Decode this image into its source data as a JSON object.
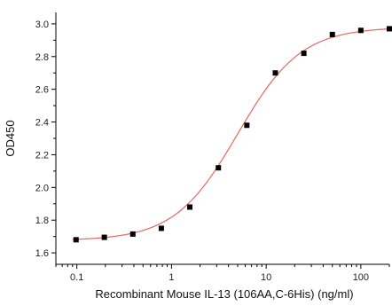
{
  "chart_data": {
    "type": "scatter",
    "xlabel": "Recombinant Mouse IL-13 (106AA,C-6His) (ng/ml)",
    "ylabel": "OD450",
    "x_scale": "log",
    "xlim": [
      0.06,
      200
    ],
    "ylim": [
      1.53,
      3.07
    ],
    "x_ticks": [
      {
        "value": 0.1,
        "label": "0.1"
      },
      {
        "value": 1,
        "label": "1"
      },
      {
        "value": 10,
        "label": "10"
      },
      {
        "value": 100,
        "label": "100"
      }
    ],
    "y_ticks": [
      {
        "value": 1.6,
        "label": "1.6"
      },
      {
        "value": 1.8,
        "label": "1.8"
      },
      {
        "value": 2.0,
        "label": "2.0"
      },
      {
        "value": 2.2,
        "label": "2.2"
      },
      {
        "value": 2.4,
        "label": "2.4"
      },
      {
        "value": 2.6,
        "label": "2.6"
      },
      {
        "value": 2.8,
        "label": "2.8"
      },
      {
        "value": 3.0,
        "label": "3.0"
      }
    ],
    "grid": false,
    "series": [
      {
        "marker": "square",
        "color": "#000000",
        "x": [
          0.098,
          0.195,
          0.39,
          0.78,
          1.56,
          3.125,
          6.25,
          12.5,
          25,
          50,
          100,
          200
        ],
        "y": [
          1.68,
          1.695,
          1.715,
          1.75,
          1.88,
          2.12,
          2.38,
          2.7,
          2.82,
          2.935,
          2.96,
          2.97
        ]
      }
    ],
    "fit": {
      "type": "4PL",
      "bottom": 1.675,
      "top": 2.98,
      "ec50": 5.0,
      "hill": 1.3,
      "color": "#e8665f"
    }
  }
}
